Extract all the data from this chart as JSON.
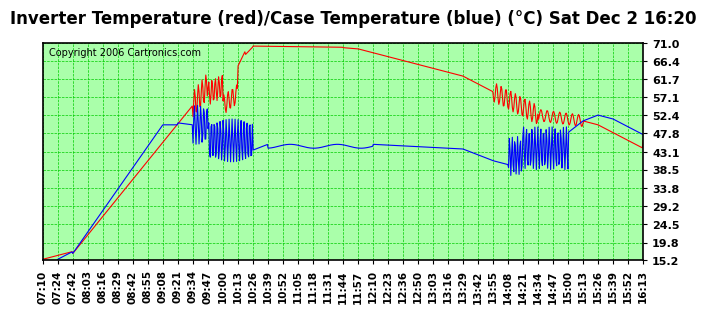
{
  "title": "Inverter Temperature (red)/Case Temperature (blue) (°C) Sat Dec 2 16:20",
  "copyright": "Copyright 2006 Cartronics.com",
  "background_color": "#ffffff",
  "plot_bg_color": "#aaffaa",
  "y_ticks": [
    15.2,
    19.8,
    24.5,
    29.2,
    33.8,
    38.5,
    43.1,
    47.8,
    52.4,
    57.1,
    61.7,
    66.4,
    71.0
  ],
  "y_min": 15.2,
  "y_max": 71.0,
  "x_labels": [
    "07:10",
    "07:24",
    "07:42",
    "08:03",
    "08:16",
    "08:29",
    "08:42",
    "08:55",
    "09:08",
    "09:21",
    "09:34",
    "09:47",
    "10:00",
    "10:13",
    "10:26",
    "10:39",
    "10:52",
    "11:05",
    "11:18",
    "11:31",
    "11:44",
    "11:57",
    "12:10",
    "12:23",
    "12:36",
    "12:50",
    "13:03",
    "13:16",
    "13:29",
    "13:42",
    "13:55",
    "14:08",
    "14:21",
    "14:34",
    "14:47",
    "15:00",
    "15:13",
    "15:26",
    "15:39",
    "15:52",
    "16:13"
  ],
  "red_line_color": "#ff0000",
  "blue_line_color": "#0000ff",
  "grid_color": "#00cc00",
  "title_fontsize": 12,
  "tick_fontsize": 8,
  "copyright_fontsize": 7,
  "outer_border_color": "#000000"
}
